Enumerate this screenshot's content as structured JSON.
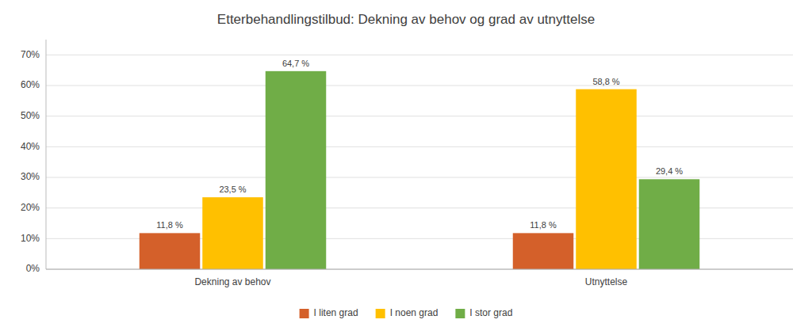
{
  "chart_data": {
    "type": "bar",
    "title": "Etterbehandlingstilbud: Dekning av behov og grad av utnyttelse",
    "categories": [
      "Dekning av behov",
      "Utnyttelse"
    ],
    "series": [
      {
        "name": "I liten grad",
        "color": "#D4602A",
        "values": [
          11.8,
          11.8
        ],
        "value_labels": [
          "11,8 %",
          "11,8 %"
        ]
      },
      {
        "name": "I noen grad",
        "color": "#FFC000",
        "values": [
          23.5,
          58.8
        ],
        "value_labels": [
          "23,5 %",
          "58,8 %"
        ]
      },
      {
        "name": "I stor grad",
        "color": "#70AD47",
        "values": [
          64.7,
          29.4
        ],
        "value_labels": [
          "64,7 %",
          "29,4 %"
        ]
      }
    ],
    "ylim": [
      0,
      75
    ],
    "yticks": [
      {
        "value": 0,
        "label": "0%"
      },
      {
        "value": 10,
        "label": "10%"
      },
      {
        "value": 20,
        "label": "20%"
      },
      {
        "value": 30,
        "label": "30%"
      },
      {
        "value": 40,
        "label": "40%"
      },
      {
        "value": 50,
        "label": "50%"
      },
      {
        "value": 60,
        "label": "60%"
      },
      {
        "value": 70,
        "label": "70%"
      }
    ],
    "grid": true,
    "data_labels": true,
    "legend": "bottom"
  }
}
